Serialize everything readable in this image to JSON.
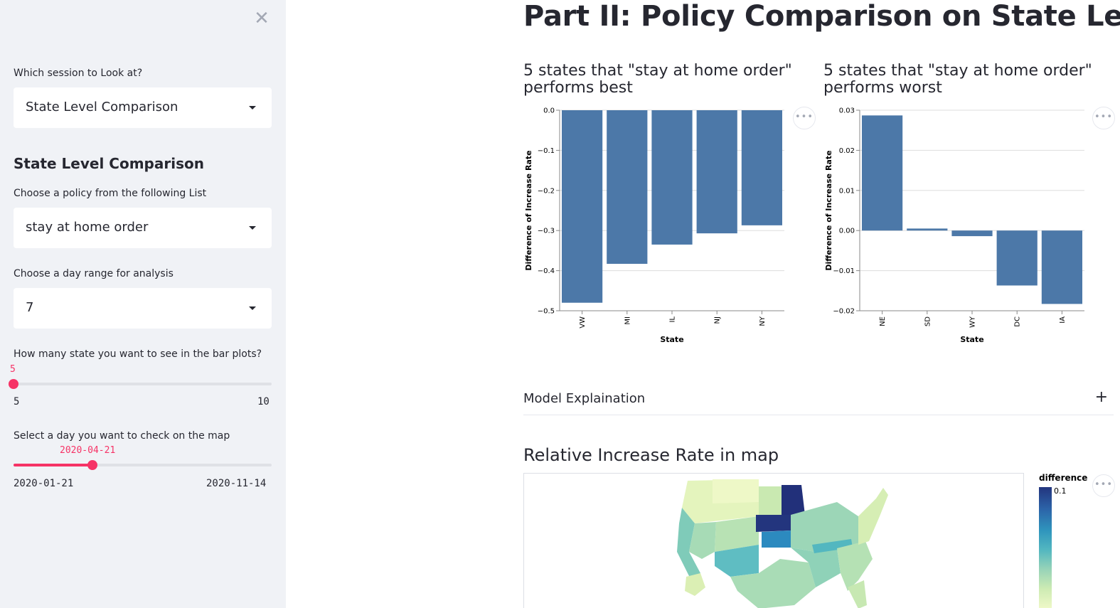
{
  "sidebar": {
    "close_icon": "close-icon",
    "session_label": "Which session to Look at?",
    "session_value": "State Level Comparison",
    "section_heading": "State Level Comparison",
    "policy_label": "Choose a policy from the following List",
    "policy_value": "stay at home order",
    "dayrange_label": "Choose a day range for analysis",
    "dayrange_value": "7",
    "nstates_label": "How many state you want to see in the bar plots?",
    "nstates_value": "5",
    "nstates_min": "5",
    "nstates_max": "10",
    "nstates_fraction": 0.0,
    "date_label": "Select a day you want to check on the map",
    "date_value": "2020-04-21",
    "date_min": "2020-01-21",
    "date_max": "2020-11-14",
    "date_fraction": 0.307,
    "accent_color": "#f63366"
  },
  "main": {
    "page_title": "Part II: Policy Comparison on State Level",
    "best_title_line1": "5 states that \"stay at home order\"",
    "best_title_line2": "performs best",
    "worst_title_line1": "5 states that \"stay at home order\"",
    "worst_title_line2": "performs worst",
    "more_icon": "ellipsis-icon",
    "more_label": "•••",
    "expander_label": "Model Explaination",
    "expander_icon": "+",
    "map_title": "Relative Increase Rate in map",
    "legend_title": "difference",
    "legend_max": "0.1"
  },
  "chart_data": [
    {
      "type": "bar",
      "categories": [
        "VW",
        "MI",
        "IL",
        "NJ",
        "NY"
      ],
      "values": [
        -0.48,
        -0.383,
        -0.335,
        -0.307,
        -0.287
      ],
      "xlabel": "State",
      "ylabel": "Difference of Increase Rate",
      "ylim": [
        -0.5,
        0.0
      ],
      "yticks": [
        "0.0",
        "−0.1",
        "−0.2",
        "−0.3",
        "−0.4",
        "−0.5"
      ],
      "ytick_values": [
        0.0,
        -0.1,
        -0.2,
        -0.3,
        -0.4,
        -0.5
      ],
      "grid": true,
      "color": "#4c78a8"
    },
    {
      "type": "bar",
      "categories": [
        "NE",
        "SD",
        "WY",
        "DC",
        "IA"
      ],
      "values": [
        0.0287,
        0.0005,
        -0.0014,
        -0.0137,
        -0.0183
      ],
      "xlabel": "State",
      "ylabel": "Difference of Increase Rate",
      "ylim": [
        -0.02,
        0.03
      ],
      "yticks": [
        "0.03",
        "0.02",
        "0.01",
        "0.00",
        "−0.01",
        "−0.02"
      ],
      "ytick_values": [
        0.03,
        0.02,
        0.01,
        0.0,
        -0.01,
        -0.02
      ],
      "grid": true,
      "color": "#4c78a8"
    }
  ]
}
